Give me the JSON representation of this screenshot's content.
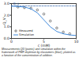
{
  "chart_data": {
    "type": "line",
    "xlabel": "c (mM)",
    "ylabel": "Q_V",
    "xlim": [
      0,
      10
    ],
    "xticks": [
      0,
      5,
      10
    ],
    "ylim": [
      0,
      3
    ],
    "yticks": [
      0,
      1,
      2,
      3
    ],
    "series": [
      {
        "name": "Measured",
        "type": "scatter",
        "marker": "circle",
        "color": "#333333",
        "x": [
          1,
          2,
          3,
          4,
          5,
          6,
          7,
          8,
          9
        ],
        "values": [
          2.7,
          2.65,
          2.6,
          2.45,
          2.1,
          1.5,
          0.9,
          0.55,
          0.4
        ]
      },
      {
        "name": "Simulation",
        "type": "line",
        "color": "#2f7fd8",
        "x": [
          0,
          1,
          2,
          3,
          4,
          5,
          6,
          7,
          8,
          9,
          10
        ],
        "values": [
          2.78,
          2.75,
          2.7,
          2.55,
          2.2,
          1.6,
          1.0,
          0.6,
          0.4,
          0.3,
          0.25
        ]
      }
    ],
    "annotations": [
      {
        "text": "Q_s",
        "y": 2.8,
        "line_style": "dashed",
        "color": "#2b5ea8"
      }
    ],
    "legend": "bottom-left",
    "caption": "Measurements Q0 (points) and simulation within the framework of PMF depletion by elastomers (blue), plotted as a function of the concentration of additive."
  }
}
